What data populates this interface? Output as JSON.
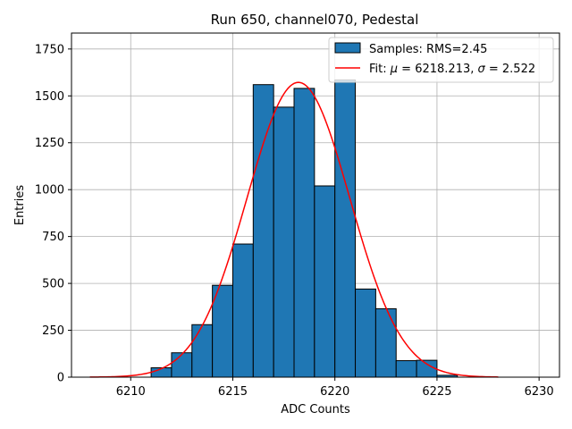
{
  "chart_data": {
    "type": "bar",
    "title": "Run 650, channel070, Pedestal",
    "xlabel": "ADC Counts",
    "ylabel": "Entries",
    "xlim": [
      6207.1,
      6231.0
    ],
    "ylim": [
      0,
      1835
    ],
    "x_ticks": [
      6210,
      6215,
      6220,
      6225,
      6230
    ],
    "y_ticks": [
      0,
      250,
      500,
      750,
      1000,
      1250,
      1500,
      1750
    ],
    "grid": true,
    "legend_position": "top-right",
    "bin_width": 1,
    "histogram": {
      "name": "Samples: RMS=2.45",
      "color": "#1f77b4",
      "edge_color": "#000000",
      "bin_starts": [
        6211,
        6212,
        6213,
        6214,
        6215,
        6216,
        6217,
        6218,
        6219,
        6220,
        6221,
        6222,
        6223,
        6224,
        6225
      ],
      "counts": [
        50,
        130,
        280,
        490,
        710,
        1560,
        1440,
        1540,
        1020,
        1585,
        470,
        365,
        88,
        90,
        10
      ]
    },
    "fit": {
      "name_prefix": "Fit: ",
      "mu_symbol": "μ",
      "mu_text": " = 6218.213, ",
      "sigma_symbol": "σ",
      "sigma_text": " = 2.522",
      "color": "#ff0000",
      "mu": 6218.213,
      "sigma": 2.522,
      "amplitude": 1572,
      "x_range": [
        6208,
        6228
      ]
    }
  }
}
